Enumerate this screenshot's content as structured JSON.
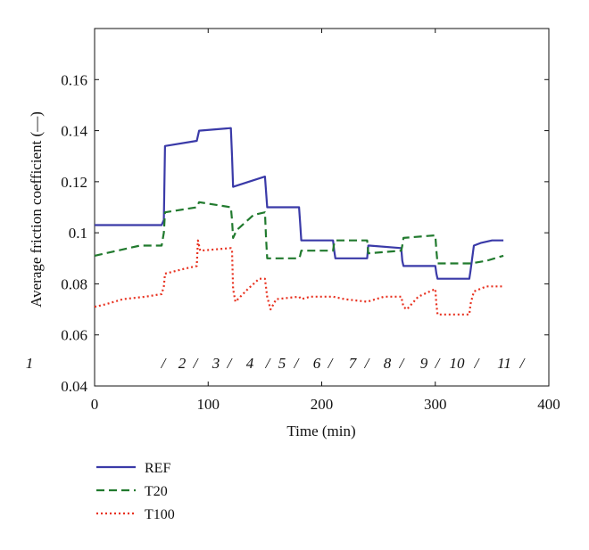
{
  "chart_data": {
    "type": "line",
    "title": "",
    "xlabel": "Time (min)",
    "ylabel": "Average friction coefficient (—)",
    "xlim": [
      0,
      400
    ],
    "ylim": [
      0.04,
      0.18
    ],
    "xticks": [
      "0",
      "100",
      "200",
      "300",
      "400"
    ],
    "yticks": [
      "0.04",
      "0.06",
      "0.08",
      "0.1",
      "0.12",
      "0.14",
      "0.16"
    ],
    "grid": false,
    "legend_position": "below-plot-left",
    "segment_labels": [
      "1",
      "/",
      "2",
      "/",
      "3",
      "/",
      "4",
      "/",
      "5",
      "/",
      "6",
      "/",
      "7",
      "/",
      "8",
      "/",
      "9",
      "/",
      "10",
      "/",
      "11",
      "/"
    ],
    "series": [
      {
        "name": "REF",
        "color": "#3a3aa8",
        "style": "solid",
        "x": [
          0,
          59,
          61,
          62,
          90,
          92,
          120,
          121,
          122,
          150,
          152,
          180,
          181,
          182,
          210,
          211,
          212,
          240,
          241,
          242,
          270,
          271,
          272,
          300,
          301,
          302,
          330,
          331,
          334,
          340,
          350,
          360
        ],
        "y": [
          0.103,
          0.103,
          0.105,
          0.134,
          0.136,
          0.14,
          0.141,
          0.13,
          0.118,
          0.122,
          0.11,
          0.11,
          0.104,
          0.097,
          0.097,
          0.093,
          0.09,
          0.09,
          0.095,
          0.095,
          0.094,
          0.089,
          0.087,
          0.087,
          0.084,
          0.082,
          0.082,
          0.085,
          0.095,
          0.096,
          0.097,
          0.097
        ]
      },
      {
        "name": "T20",
        "color": "#217a2e",
        "style": "dashed",
        "x": [
          0,
          20,
          40,
          59,
          61,
          62,
          90,
          92,
          120,
          121,
          122,
          125,
          140,
          150,
          151,
          152,
          180,
          181,
          182,
          210,
          211,
          212,
          240,
          241,
          242,
          270,
          271,
          272,
          300,
          301,
          302,
          330,
          331,
          345,
          360
        ],
        "y": [
          0.091,
          0.093,
          0.095,
          0.095,
          0.1,
          0.108,
          0.11,
          0.112,
          0.11,
          0.105,
          0.098,
          0.101,
          0.107,
          0.108,
          0.098,
          0.09,
          0.09,
          0.091,
          0.093,
          0.093,
          0.096,
          0.097,
          0.097,
          0.092,
          0.092,
          0.093,
          0.095,
          0.098,
          0.099,
          0.093,
          0.088,
          0.088,
          0.088,
          0.089,
          0.091
        ]
      },
      {
        "name": "T100",
        "color": "#e8311f",
        "style": "dotted",
        "x": [
          0,
          10,
          25,
          45,
          59,
          61,
          62,
          80,
          90,
          91,
          93,
          120,
          121,
          122,
          124,
          135,
          145,
          150,
          152,
          155,
          160,
          180,
          182,
          190,
          210,
          220,
          240,
          255,
          270,
          272,
          275,
          285,
          300,
          301,
          302,
          315,
          330,
          331,
          334,
          345,
          360
        ],
        "y": [
          0.071,
          0.072,
          0.074,
          0.075,
          0.076,
          0.079,
          0.084,
          0.086,
          0.087,
          0.097,
          0.093,
          0.094,
          0.093,
          0.078,
          0.073,
          0.078,
          0.082,
          0.082,
          0.075,
          0.07,
          0.074,
          0.075,
          0.074,
          0.075,
          0.075,
          0.074,
          0.073,
          0.075,
          0.075,
          0.071,
          0.07,
          0.075,
          0.078,
          0.072,
          0.068,
          0.068,
          0.068,
          0.072,
          0.077,
          0.079,
          0.079
        ]
      }
    ]
  }
}
